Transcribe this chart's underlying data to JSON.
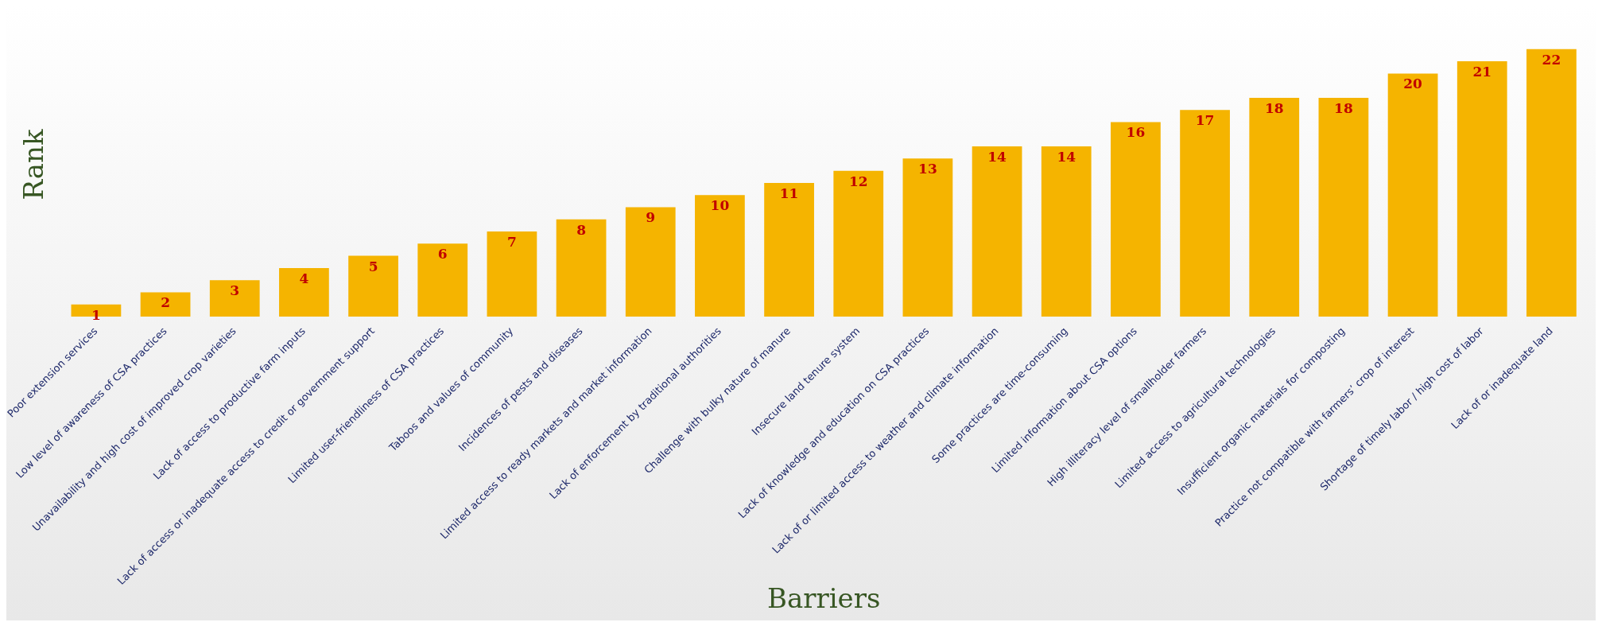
{
  "chart_data": {
    "type": "bar",
    "xlabel": "Barriers",
    "ylabel": "Rank",
    "categories": [
      "Poor extension services",
      "Low level of awareness of CSA practices",
      "Unavailability and high cost of improved crop varieties",
      "Lack of access to productive farm inputs",
      "Lack of access or inadequate access to credit or government support",
      "Limited user-friendliness of CSA practices",
      "Taboos and values of community",
      "Incidences of pests and diseases",
      "Limited access to ready markets and market information",
      "Lack of enforcement by traditional authorities",
      "Challenge with bulky nature of manure",
      "Insecure land tenure system",
      "Lack of knowledge and education on CSA practices",
      "Lack of or limited access to weather and climate information",
      "Some practices are time-consuming",
      "Limited information about CSA options",
      "High illiteracy level of smallholder farmers",
      "Limited access to agricultural technologies",
      "Insufficient organic materials for composting",
      "Practice not compatible with farmers’ crop of interest",
      "Shortage of timely labor / high cost of labor",
      "Lack of or inadequate land"
    ],
    "values": [
      1,
      2,
      3,
      4,
      5,
      6,
      7,
      8,
      9,
      10,
      11,
      12,
      13,
      14,
      14,
      16,
      17,
      18,
      18,
      20,
      21,
      22
    ],
    "color": "#f5b400",
    "data_labels": true,
    "grid": false,
    "legend": false,
    "tick_labels": "x"
  }
}
